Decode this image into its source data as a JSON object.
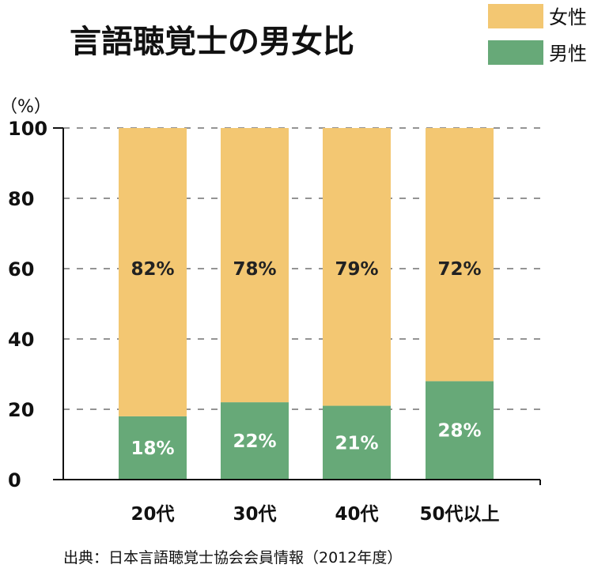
{
  "chart_data": {
    "type": "bar",
    "stacked": true,
    "title": "言語聴覚士の男女比",
    "y_unit": "（%）",
    "categories": [
      "20代",
      "30代",
      "40代",
      "50代以上"
    ],
    "series": [
      {
        "name": "男性",
        "color": "#67a978",
        "values": [
          18,
          22,
          21,
          28
        ],
        "labels": [
          "18%",
          "22%",
          "21%",
          "28%"
        ]
      },
      {
        "name": "女性",
        "color": "#f3c772",
        "values": [
          82,
          78,
          79,
          72
        ],
        "labels": [
          "82%",
          "78%",
          "79%",
          "72%"
        ]
      }
    ],
    "legend": [
      {
        "name": "女性",
        "color": "#f3c772"
      },
      {
        "name": "男性",
        "color": "#67a978"
      }
    ],
    "legend_position": "top-right",
    "ylim": [
      0,
      100
    ],
    "yticks": [
      "0",
      "20",
      "40",
      "60",
      "80",
      "100"
    ],
    "grid": "dashed horizontal",
    "source": "出典：日本言語聴覚士協会会員情報（2012年度）"
  }
}
